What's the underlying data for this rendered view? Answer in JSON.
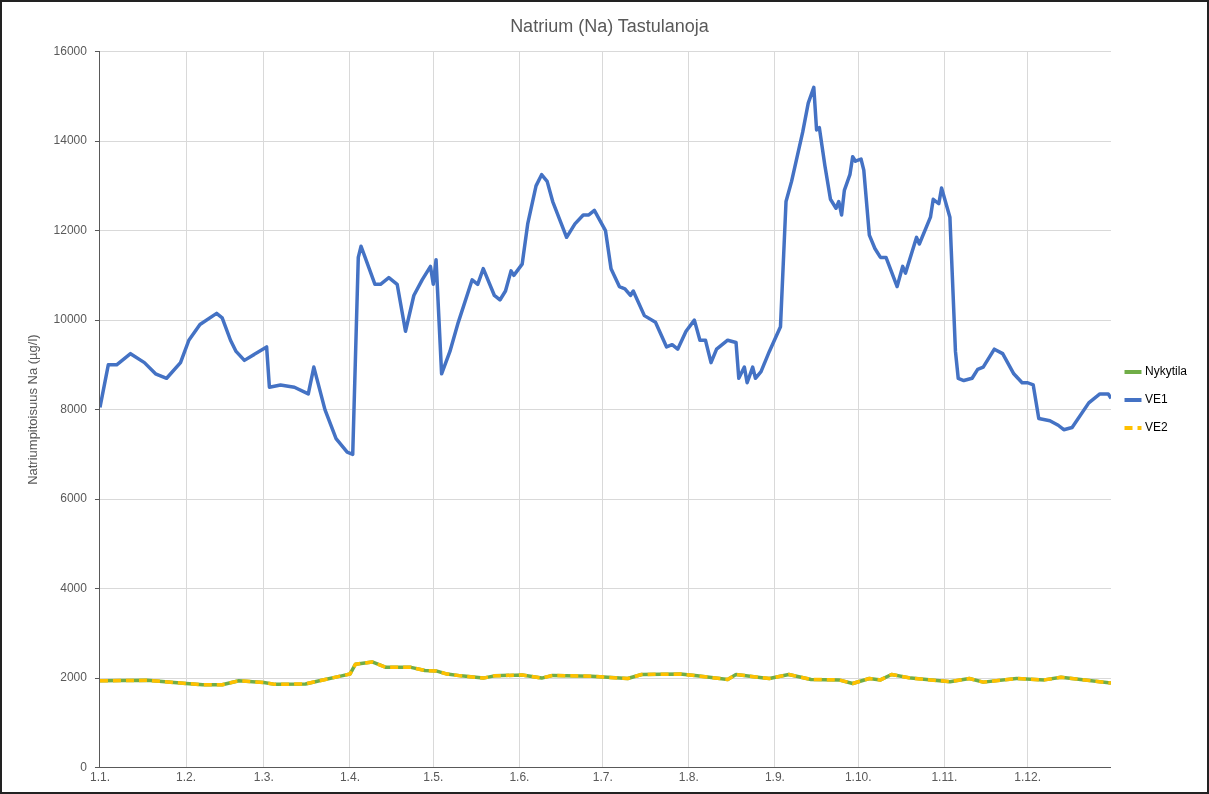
{
  "chart_data": {
    "type": "line",
    "title": "Natrium (Na) Tastulanoja",
    "ylabel": "Natriumpitoisuus Na (µg/l)",
    "xlim": [
      "--01-01",
      "--12-31"
    ],
    "xticks": [
      {
        "value": "--01-01",
        "label": "1.1."
      },
      {
        "value": "--02-01",
        "label": "1.2."
      },
      {
        "value": "--03-01",
        "label": "1.3."
      },
      {
        "value": "--04-01",
        "label": "1.4."
      },
      {
        "value": "--05-01",
        "label": "1.5."
      },
      {
        "value": "--06-01",
        "label": "1.6."
      },
      {
        "value": "--07-01",
        "label": "1.7."
      },
      {
        "value": "--08-01",
        "label": "1.8."
      },
      {
        "value": "--09-01",
        "label": "1.9."
      },
      {
        "value": "--10-01",
        "label": "1.10."
      },
      {
        "value": "--11-01",
        "label": "1.11."
      },
      {
        "value": "--12-01",
        "label": "1.12."
      }
    ],
    "ylim": [
      0,
      16000
    ],
    "yticks": [
      0,
      2000,
      4000,
      6000,
      8000,
      10000,
      12000,
      14000,
      16000
    ],
    "grid": true,
    "legend": "right",
    "marker": "none",
    "series": [
      {
        "name": "Nykytila",
        "color": "#70ad47",
        "line_style": "solid",
        "x": [
          "--01-01",
          "--01-18",
          "--02-01",
          "--02-07",
          "--02-14",
          "--02-20",
          "--03-01",
          "--03-05",
          "--03-16",
          "--03-21",
          "--03-29",
          "--04-01",
          "--04-03",
          "--04-09",
          "--04-14",
          "--04-23",
          "--04-28",
          "--05-02",
          "--05-06",
          "--05-11",
          "--05-19",
          "--05-23",
          "--06-02",
          "--06-09",
          "--06-13",
          "--06-27",
          "--07-10",
          "--07-15",
          "--07-29",
          "--08-04",
          "--08-15",
          "--08-18",
          "--08-30",
          "--09-06",
          "--09-14",
          "--09-24",
          "--09-29",
          "--10-05",
          "--10-09",
          "--10-13",
          "--10-20",
          "--11-03",
          "--11-10",
          "--11-15",
          "--11-27",
          "--12-07",
          "--12-13",
          "--12-31"
        ],
        "values": [
          1940,
          1950,
          1880,
          1850,
          1850,
          1940,
          1900,
          1860,
          1870,
          1940,
          2050,
          2090,
          2310,
          2360,
          2240,
          2240,
          2170,
          2160,
          2090,
          2050,
          2000,
          2050,
          2070,
          2000,
          2060,
          2040,
          1990,
          2080,
          2090,
          2050,
          1970,
          2080,
          1990,
          2080,
          1970,
          1960,
          1880,
          1990,
          1960,
          2080,
          2000,
          1920,
          1990,
          1910,
          1990,
          1960,
          2020,
          1890
        ]
      },
      {
        "name": "VE1",
        "color": "#4472c4",
        "line_style": "solid",
        "x": [
          "--01-01",
          "--01-04",
          "--01-07",
          "--01-12",
          "--01-17",
          "--01-21",
          "--01-25",
          "--01-30",
          "--02-02",
          "--02-06",
          "--02-12",
          "--02-14",
          "--02-17",
          "--02-19",
          "--02-22",
          "--03-02",
          "--03-03",
          "--03-07",
          "--03-12",
          "--03-17",
          "--03-19",
          "--03-23",
          "--03-27",
          "--03-31",
          "--04-02",
          "--04-04",
          "--04-05",
          "--04-10",
          "--04-12",
          "--04-15",
          "--04-18",
          "--04-21",
          "--04-24",
          "--04-27",
          "--04-30",
          "--05-01",
          "--05-02",
          "--05-04",
          "--05-07",
          "--05-10",
          "--05-15",
          "--05-17",
          "--05-19",
          "--05-23",
          "--05-25",
          "--05-27",
          "--05-29",
          "--05-30",
          "--06-02",
          "--06-04",
          "--06-07",
          "--06-09",
          "--06-11",
          "--06-13",
          "--06-18",
          "--06-21",
          "--06-24",
          "--06-26",
          "--06-28",
          "--07-02",
          "--07-04",
          "--07-07",
          "--07-09",
          "--07-11",
          "--07-12",
          "--07-16",
          "--07-20",
          "--07-24",
          "--07-26",
          "--07-28",
          "--07-31",
          "--08-03",
          "--08-05",
          "--08-07",
          "--08-09",
          "--08-11",
          "--08-15",
          "--08-18",
          "--08-19",
          "--08-21",
          "--08-22",
          "--08-24",
          "--08-25",
          "--08-27",
          "--08-30",
          "--09-03",
          "--09-05",
          "--09-07",
          "--09-11",
          "--09-13",
          "--09-15",
          "--09-16",
          "--09-17",
          "--09-19",
          "--09-21",
          "--09-23",
          "--09-24",
          "--09-25",
          "--09-26",
          "--09-28",
          "--09-29",
          "--09-30",
          "--10-02",
          "--10-03",
          "--10-05",
          "--10-07",
          "--10-09",
          "--10-11",
          "--10-15",
          "--10-17",
          "--10-18",
          "--10-22",
          "--10-23",
          "--10-27",
          "--10-28",
          "--10-30",
          "--10-31",
          "--11-03",
          "--11-05",
          "--11-06",
          "--11-08",
          "--11-11",
          "--11-13",
          "--11-15",
          "--11-19",
          "--11-22",
          "--11-26",
          "--11-29",
          "--12-01",
          "--12-03",
          "--12-05",
          "--12-09",
          "--12-12",
          "--12-14",
          "--12-17",
          "--12-23",
          "--12-27",
          "--12-30",
          "--12-31"
        ],
        "values": [
          8050,
          9000,
          9000,
          9250,
          9050,
          8800,
          8700,
          9050,
          9550,
          9900,
          10150,
          10050,
          9550,
          9300,
          9100,
          9400,
          8500,
          8550,
          8500,
          8350,
          8950,
          8000,
          7350,
          7050,
          7000,
          11400,
          11650,
          10800,
          10800,
          10950,
          10800,
          9750,
          10550,
          10900,
          11200,
          10800,
          11350,
          8800,
          9300,
          9950,
          10900,
          10800,
          11150,
          10550,
          10450,
          10650,
          11100,
          11000,
          11250,
          12150,
          13000,
          13250,
          13100,
          12650,
          11850,
          12150,
          12350,
          12350,
          12450,
          12000,
          11150,
          10750,
          10700,
          10550,
          10650,
          10100,
          9950,
          9400,
          9450,
          9350,
          9750,
          10000,
          9550,
          9550,
          9050,
          9350,
          9550,
          9500,
          8700,
          8950,
          8600,
          8950,
          8700,
          8850,
          9300,
          9850,
          12650,
          13100,
          14200,
          14850,
          15200,
          14250,
          14300,
          13450,
          12700,
          12500,
          12650,
          12350,
          12900,
          13250,
          13650,
          13550,
          13600,
          13350,
          11900,
          11600,
          11400,
          11400,
          10750,
          11200,
          11050,
          11850,
          11700,
          12300,
          12700,
          12600,
          12950,
          12300,
          9300,
          8700,
          8650,
          8700,
          8900,
          8950,
          9350,
          9250,
          8800,
          8600,
          8600,
          8550,
          7800,
          7750,
          7650,
          7550,
          7600,
          8150,
          8350,
          8350,
          8250
        ]
      },
      {
        "name": "VE2",
        "color": "#ffc000",
        "line_style": "dashed",
        "x": [
          "--01-01",
          "--01-18",
          "--02-01",
          "--02-07",
          "--02-14",
          "--02-20",
          "--03-01",
          "--03-05",
          "--03-16",
          "--03-21",
          "--03-29",
          "--04-01",
          "--04-03",
          "--04-09",
          "--04-14",
          "--04-23",
          "--04-28",
          "--05-02",
          "--05-06",
          "--05-11",
          "--05-19",
          "--05-23",
          "--06-02",
          "--06-09",
          "--06-13",
          "--06-27",
          "--07-10",
          "--07-15",
          "--07-29",
          "--08-04",
          "--08-15",
          "--08-18",
          "--08-30",
          "--09-06",
          "--09-14",
          "--09-24",
          "--09-29",
          "--10-05",
          "--10-09",
          "--10-13",
          "--10-20",
          "--11-03",
          "--11-10",
          "--11-15",
          "--11-27",
          "--12-07",
          "--12-13",
          "--12-31"
        ],
        "values": [
          1940,
          1950,
          1880,
          1850,
          1850,
          1940,
          1900,
          1860,
          1870,
          1940,
          2050,
          2090,
          2310,
          2360,
          2240,
          2240,
          2170,
          2160,
          2090,
          2050,
          2000,
          2050,
          2070,
          2000,
          2060,
          2040,
          1990,
          2080,
          2090,
          2050,
          1970,
          2080,
          1990,
          2080,
          1970,
          1960,
          1880,
          1990,
          1960,
          2080,
          2000,
          1920,
          1990,
          1910,
          1990,
          1960,
          2020,
          1890
        ]
      }
    ]
  }
}
